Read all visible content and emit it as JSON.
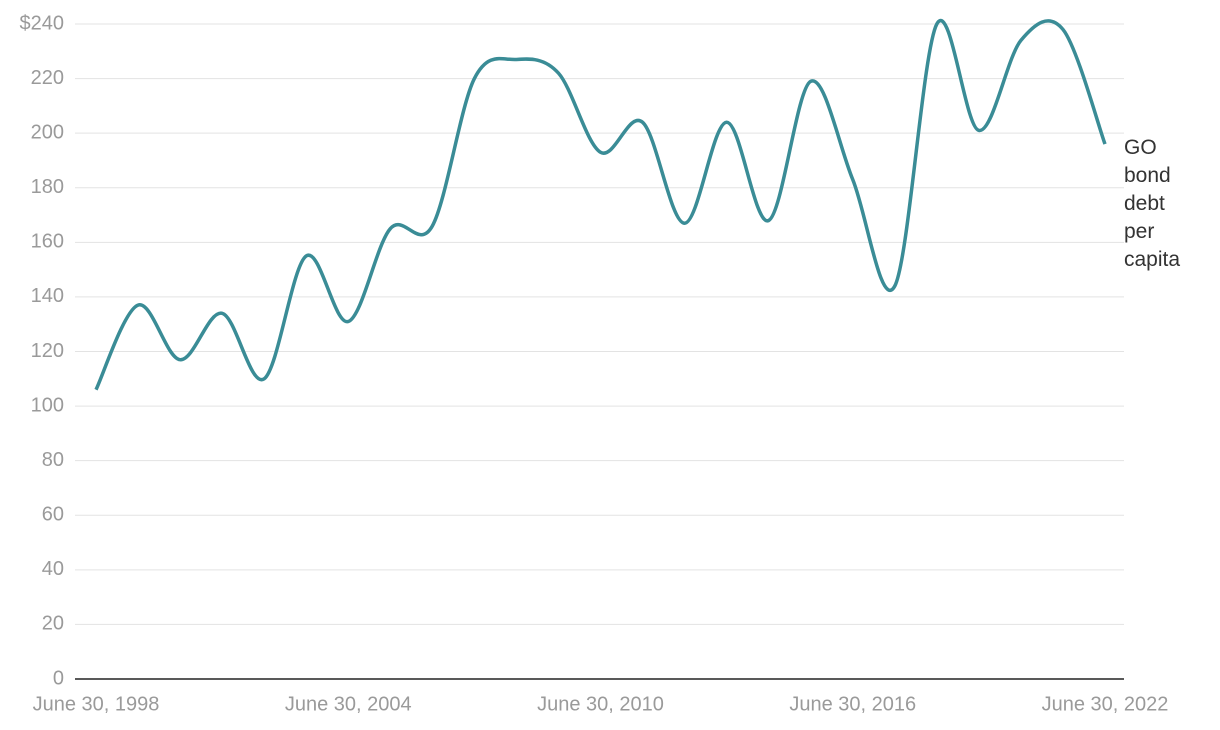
{
  "chart_data": {
    "type": "line",
    "categories": [
      "June 30, 1998",
      null,
      null,
      null,
      null,
      null,
      "June 30, 2004",
      null,
      null,
      null,
      null,
      null,
      "June 30, 2010",
      null,
      null,
      null,
      null,
      null,
      "June 30, 2016",
      null,
      null,
      null,
      null,
      null,
      "June 30, 2022"
    ],
    "series": [
      {
        "name": "GO bond debt per capita",
        "color": "#3a8c96",
        "values": [
          106,
          137,
          117,
          134,
          110,
          155,
          131,
          165,
          166,
          220,
          227,
          222,
          193,
          204,
          167,
          204,
          168,
          219,
          183,
          144,
          240,
          201,
          234,
          238,
          196
        ]
      }
    ],
    "ylim": [
      0,
      240
    ],
    "yticks": [
      0,
      20,
      40,
      60,
      80,
      100,
      120,
      140,
      160,
      180,
      200,
      220,
      {
        "value": 240,
        "label": "$240"
      }
    ],
    "grid": true
  }
}
